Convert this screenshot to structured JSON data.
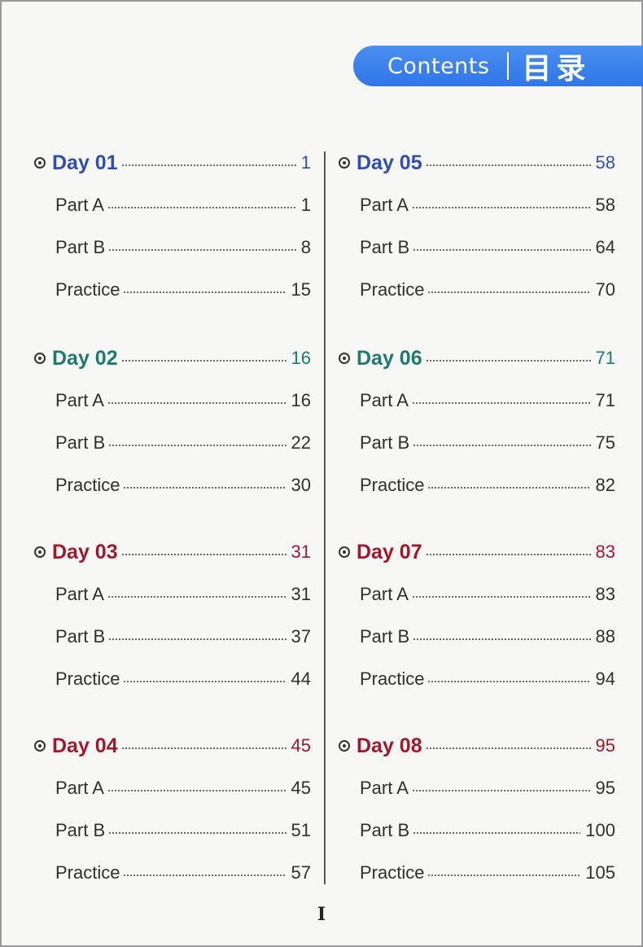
{
  "header": {
    "title_en": "Contents",
    "title_cn": "目录",
    "accent": "#3a80ec"
  },
  "left_column": [
    {
      "day": "Day 01",
      "page": "1",
      "color": "#2f4fb0",
      "items": [
        {
          "label": "Part A",
          "page": "1"
        },
        {
          "label": "Part B",
          "page": "8"
        },
        {
          "label": "Practice",
          "page": "15"
        }
      ]
    },
    {
      "day": "Day 02",
      "page": "16",
      "color": "#1e7a6e",
      "items": [
        {
          "label": "Part A",
          "page": "16"
        },
        {
          "label": "Part B",
          "page": "22"
        },
        {
          "label": "Practice",
          "page": "30"
        }
      ]
    },
    {
      "day": "Day 03",
      "page": "31",
      "color": "#a0182a",
      "items": [
        {
          "label": "Part A",
          "page": "31"
        },
        {
          "label": "Part B",
          "page": "37"
        },
        {
          "label": "Practice",
          "page": "44"
        }
      ]
    },
    {
      "day": "Day 04",
      "page": "45",
      "color": "#a0182a",
      "items": [
        {
          "label": "Part A",
          "page": "45"
        },
        {
          "label": "Part B",
          "page": "51"
        },
        {
          "label": "Practice",
          "page": "57"
        }
      ]
    }
  ],
  "right_column": [
    {
      "day": "Day 05",
      "page": "58",
      "color": "#2f4fb0",
      "items": [
        {
          "label": "Part A",
          "page": "58"
        },
        {
          "label": "Part B",
          "page": "64"
        },
        {
          "label": "Practice",
          "page": "70"
        }
      ]
    },
    {
      "day": "Day 06",
      "page": "71",
      "color": "#1e7a6e",
      "items": [
        {
          "label": "Part A",
          "page": "71"
        },
        {
          "label": "Part B",
          "page": "75"
        },
        {
          "label": "Practice",
          "page": "82"
        }
      ]
    },
    {
      "day": "Day 07",
      "page": "83",
      "color": "#a0182a",
      "items": [
        {
          "label": "Part A",
          "page": "83"
        },
        {
          "label": "Part B",
          "page": "88"
        },
        {
          "label": "Practice",
          "page": "94"
        }
      ]
    },
    {
      "day": "Day 08",
      "page": "95",
      "color": "#a0182a",
      "items": [
        {
          "label": "Part A",
          "page": "95"
        },
        {
          "label": "Part B",
          "page": "100"
        },
        {
          "label": "Practice",
          "page": "105"
        }
      ]
    }
  ],
  "footer": {
    "page_number": "I"
  }
}
